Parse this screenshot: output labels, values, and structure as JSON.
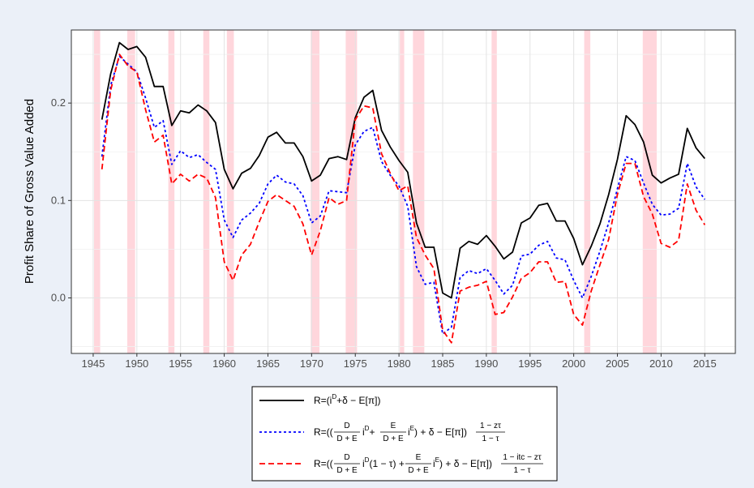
{
  "chart_data": {
    "type": "line",
    "title": "",
    "xlabel": "",
    "ylabel": "Profit Share of Gross Value Added",
    "xlim": [
      1942.5,
      2018.5
    ],
    "ylim": [
      -0.057,
      0.275
    ],
    "x_ticks": [
      1945,
      1950,
      1955,
      1960,
      1965,
      1970,
      1975,
      1980,
      1985,
      1990,
      1995,
      2000,
      2005,
      2010,
      2015
    ],
    "x_tick_labels": [
      "1945",
      "1950",
      "1955",
      "1960",
      "1965",
      "1970",
      "1975",
      "1980",
      "1985",
      "1990",
      "1995",
      "2000",
      "2005",
      "2010",
      "2015"
    ],
    "y_ticks": [
      0.0,
      0.1,
      0.2
    ],
    "y_tick_labels": [
      "0.0",
      "0.1",
      "0.2"
    ],
    "grid": true,
    "legend_position": "bottom",
    "recessions": [
      [
        1945.1,
        1945.8
      ],
      [
        1948.9,
        1949.8
      ],
      [
        1953.6,
        1954.3
      ],
      [
        1957.6,
        1958.3
      ],
      [
        1960.3,
        1961.1
      ],
      [
        1969.9,
        1970.9
      ],
      [
        1973.9,
        1975.2
      ],
      [
        1980.1,
        1980.6
      ],
      [
        1981.6,
        1982.9
      ],
      [
        1990.6,
        1991.2
      ],
      [
        2001.2,
        2001.9
      ],
      [
        2007.9,
        2009.5
      ]
    ],
    "x": [
      1946,
      1947,
      1948,
      1949,
      1950,
      1951,
      1952,
      1953,
      1954,
      1955,
      1956,
      1957,
      1958,
      1959,
      1960,
      1961,
      1962,
      1963,
      1964,
      1965,
      1966,
      1967,
      1968,
      1969,
      1970,
      1971,
      1972,
      1973,
      1974,
      1975,
      1976,
      1977,
      1978,
      1979,
      1980,
      1981,
      1982,
      1983,
      1984,
      1985,
      1986,
      1987,
      1988,
      1989,
      1990,
      1991,
      1992,
      1993,
      1994,
      1995,
      1996,
      1997,
      1998,
      1999,
      2000,
      2001,
      2002,
      2003,
      2004,
      2005,
      2006,
      2007,
      2008,
      2009,
      2010,
      2011,
      2012,
      2013,
      2014,
      2015
    ],
    "series": [
      {
        "name": "R=(i^D+δ-E[π])",
        "color": "#000000",
        "dash": "solid",
        "values": [
          0.183,
          0.23,
          0.262,
          0.255,
          0.258,
          0.247,
          0.217,
          0.217,
          0.177,
          0.192,
          0.19,
          0.198,
          0.192,
          0.18,
          0.132,
          0.112,
          0.128,
          0.133,
          0.146,
          0.165,
          0.17,
          0.159,
          0.159,
          0.145,
          0.12,
          0.126,
          0.143,
          0.145,
          0.142,
          0.185,
          0.206,
          0.213,
          0.172,
          0.155,
          0.141,
          0.129,
          0.077,
          0.052,
          0.052,
          0.005,
          0.0,
          0.051,
          0.058,
          0.055,
          0.064,
          0.053,
          0.04,
          0.047,
          0.077,
          0.082,
          0.095,
          0.097,
          0.079,
          0.079,
          0.061,
          0.034,
          0.053,
          0.076,
          0.106,
          0.142,
          0.187,
          0.178,
          0.16,
          0.126,
          0.118,
          0.123,
          0.127,
          0.174,
          0.154,
          0.143
        ]
      },
      {
        "name": "R=((D/(D+E)i^D+E/(D+E)i^E)+δ-E[π])(1-zτ)/(1-τ)",
        "color": "#0000ff",
        "dash": "dotted",
        "values": [
          0.145,
          0.218,
          0.248,
          0.24,
          0.232,
          0.205,
          0.175,
          0.182,
          0.137,
          0.151,
          0.144,
          0.147,
          0.139,
          0.132,
          0.08,
          0.062,
          0.08,
          0.087,
          0.097,
          0.117,
          0.126,
          0.119,
          0.117,
          0.105,
          0.077,
          0.084,
          0.11,
          0.109,
          0.108,
          0.157,
          0.171,
          0.175,
          0.14,
          0.126,
          0.115,
          0.094,
          0.032,
          0.014,
          0.016,
          -0.037,
          -0.03,
          0.021,
          0.028,
          0.025,
          0.03,
          0.018,
          0.004,
          0.013,
          0.043,
          0.045,
          0.054,
          0.058,
          0.041,
          0.039,
          0.018,
          0.0,
          0.022,
          0.048,
          0.077,
          0.112,
          0.145,
          0.141,
          0.118,
          0.096,
          0.085,
          0.086,
          0.092,
          0.138,
          0.114,
          0.101
        ]
      },
      {
        "name": "R=((D/(D+E)i^D(1-τ)+E/(D+E)i^E)+δ-E[π])(1-itc-zτ)/(1-τ)",
        "color": "#ff0000",
        "dash": "dashed",
        "values": [
          0.132,
          0.213,
          0.25,
          0.238,
          0.232,
          0.193,
          0.16,
          0.167,
          0.117,
          0.127,
          0.12,
          0.127,
          0.123,
          0.103,
          0.037,
          0.018,
          0.044,
          0.055,
          0.078,
          0.099,
          0.106,
          0.1,
          0.094,
          0.076,
          0.044,
          0.069,
          0.103,
          0.096,
          0.1,
          0.183,
          0.197,
          0.195,
          0.148,
          0.128,
          0.11,
          0.115,
          0.062,
          0.044,
          0.03,
          -0.033,
          -0.046,
          0.007,
          0.011,
          0.013,
          0.017,
          -0.017,
          -0.015,
          0.001,
          0.02,
          0.026,
          0.037,
          0.037,
          0.016,
          0.017,
          -0.017,
          -0.028,
          0.007,
          0.034,
          0.06,
          0.106,
          0.138,
          0.138,
          0.104,
          0.086,
          0.056,
          0.052,
          0.059,
          0.117,
          0.09,
          0.075
        ]
      }
    ]
  },
  "legend": {
    "item1": {
      "lead": "R=(i",
      "sup": "D",
      "tail": "+δ − E[π])"
    },
    "item2": {
      "lead": "R=((",
      "f1_num": "D",
      "f1_den": "D + E",
      "mid1": "i",
      "sup1": "D",
      "plus": "+",
      "f2_num": "E",
      "f2_den": "D + E",
      "mid2": "i",
      "sup2": "E",
      "tail": ") + δ − E[π])",
      "f3_num": "1 − zτ",
      "f3_den": "1 − τ"
    },
    "item3": {
      "lead": "R=((",
      "f1_num": "D",
      "f1_den": "D + E",
      "mid1": "i",
      "sup1": "D",
      "mid1b": "(1 − τ) +",
      "f2_num": "E",
      "f2_den": "D + E",
      "mid2": "i",
      "sup2": "E",
      "tail": ") + δ − E[π])",
      "f3_num": "1 − itc − zτ",
      "f3_den": "1 − τ"
    }
  }
}
